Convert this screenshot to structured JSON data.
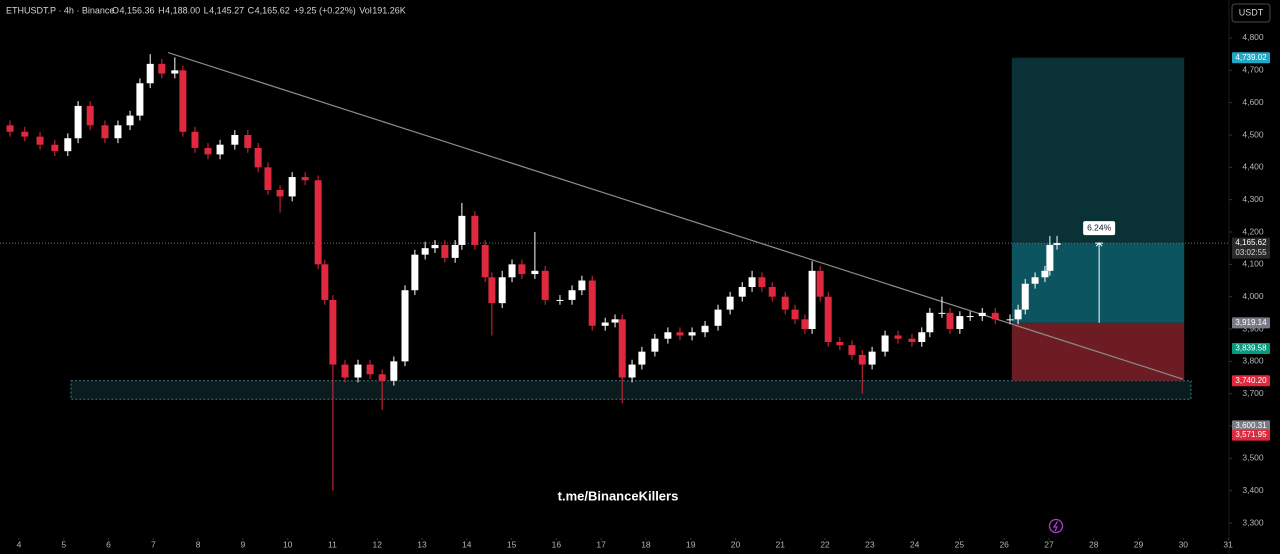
{
  "chart_data": {
    "type": "candlestick",
    "symbol": "ETHUSDT.P · 4h · Binance",
    "ohlc": [
      {
        "key": "O",
        "value": "4,156.36"
      },
      {
        "key": "H",
        "value": "4,188.00"
      },
      {
        "key": "L",
        "value": "4,145.27"
      },
      {
        "key": "C",
        "value": "4,165.62"
      },
      {
        "key": "",
        "value": "+9.25 (+0.22%)"
      },
      {
        "key": "Vol",
        "value": "191.26K"
      }
    ],
    "currency": "USDT",
    "watermark": "t.me/BinanceKillers",
    "up_color": "#ffffff",
    "down_color": "#e0293f",
    "xlim": [
      3.576,
      31.02
    ],
    "xticks": [
      4,
      5,
      6,
      7,
      8,
      9,
      10,
      11,
      12,
      13,
      14,
      15,
      16,
      17,
      18,
      19,
      20,
      21,
      22,
      23,
      24,
      25,
      26,
      27,
      28,
      29,
      30,
      31
    ],
    "ylim": [
      3263,
      4917.5
    ],
    "yticks": [
      {
        "value": 4800,
        "label": "4,800"
      },
      {
        "value": 4700,
        "label": "4,700"
      },
      {
        "value": 4600,
        "label": "4,600"
      },
      {
        "value": 4500,
        "label": "4,500"
      },
      {
        "value": 4400,
        "label": "4,400"
      },
      {
        "value": 4300,
        "label": "4,300"
      },
      {
        "value": 4200,
        "label": "4,200"
      },
      {
        "value": 4100,
        "label": "4,100"
      },
      {
        "value": 4000,
        "label": "4,000"
      },
      {
        "value": 3900,
        "label": "3,900"
      },
      {
        "value": 3800,
        "label": "3,800"
      },
      {
        "value": 3700,
        "label": "3,700"
      },
      {
        "value": 3600,
        "label": "3,600"
      },
      {
        "value": 3500,
        "label": "3,500"
      },
      {
        "value": 3400,
        "label": "3,400"
      },
      {
        "value": 3300,
        "label": "3,300"
      }
    ],
    "x": [
      3.8,
      4.13,
      4.47,
      4.8,
      5.09,
      5.32,
      5.59,
      5.92,
      6.21,
      6.48,
      6.7,
      6.93,
      7.19,
      7.48,
      7.66,
      7.93,
      8.22,
      8.49,
      8.82,
      9.11,
      9.34,
      9.56,
      9.83,
      10.1,
      10.39,
      10.68,
      10.83,
      11.01,
      11.28,
      11.57,
      11.84,
      12.11,
      12.37,
      12.62,
      12.84,
      13.07,
      13.29,
      13.51,
      13.74,
      13.89,
      14.18,
      14.41,
      14.56,
      14.79,
      15.01,
      15.23,
      15.52,
      15.75,
      16.08,
      16.35,
      16.57,
      16.8,
      17.09,
      17.31,
      17.47,
      17.69,
      17.91,
      18.2,
      18.49,
      18.76,
      19.03,
      19.32,
      19.61,
      19.88,
      20.15,
      20.37,
      20.59,
      20.82,
      21.11,
      21.33,
      21.55,
      21.71,
      21.89,
      22.07,
      22.33,
      22.6,
      22.83,
      23.05,
      23.34,
      23.63,
      23.94,
      24.16,
      24.34,
      24.61,
      24.79,
      25.01,
      25.24,
      25.51,
      25.8,
      26.13,
      26.31,
      26.47,
      26.69,
      26.91,
      27.02,
      27.18
    ],
    "open": [
      4530,
      4510,
      4495,
      4470,
      4450,
      4490,
      4590,
      4530,
      4490,
      4530,
      4560,
      4660,
      4720,
      4690,
      4700,
      4510,
      4460,
      4440,
      4470,
      4500,
      4460,
      4400,
      4330,
      4310,
      4370,
      4360,
      4100,
      3990,
      3790,
      3750,
      3790,
      3760,
      3740,
      3800,
      4020,
      4130,
      4150,
      4160,
      4120,
      4160,
      4250,
      4160,
      4060,
      3980,
      4060,
      4100,
      4070,
      4080,
      3990,
      3990,
      4020,
      4050,
      3910,
      3920,
      3930,
      3750,
      3790,
      3830,
      3870,
      3890,
      3880,
      3890,
      3910,
      3960,
      4000,
      4030,
      4060,
      4030,
      4000,
      3960,
      3930,
      3900,
      4080,
      4000,
      3860,
      3850,
      3820,
      3790,
      3830,
      3880,
      3870,
      3860,
      3890,
      3950,
      3950,
      3900,
      3940,
      3940,
      3950,
      3930,
      3930,
      3960,
      4040,
      4060,
      4080,
      4160
    ],
    "high": [
      4545,
      4525,
      4510,
      4485,
      4505,
      4605,
      4605,
      4545,
      4545,
      4575,
      4675,
      4750,
      4735,
      4740,
      4715,
      4525,
      4475,
      4485,
      4515,
      4515,
      4475,
      4415,
      4345,
      4385,
      4385,
      4375,
      4115,
      4005,
      3805,
      3805,
      3805,
      3775,
      3815,
      4035,
      4145,
      4170,
      4175,
      4175,
      4175,
      4290,
      4265,
      4175,
      4075,
      4080,
      4115,
      4115,
      4200,
      4095,
      4005,
      4035,
      4065,
      4065,
      3935,
      3945,
      3945,
      3805,
      3845,
      3885,
      3905,
      3905,
      3905,
      3925,
      3975,
      4015,
      4045,
      4080,
      4075,
      4045,
      4015,
      3975,
      3945,
      4110,
      4095,
      4015,
      3875,
      3865,
      3835,
      3845,
      3895,
      3895,
      3885,
      3905,
      3965,
      4000,
      3965,
      3955,
      3955,
      3965,
      3965,
      3945,
      3975,
      4055,
      4075,
      4095,
      4188,
      4188
    ],
    "low": [
      4495,
      4480,
      4455,
      4435,
      4435,
      4475,
      4515,
      4475,
      4475,
      4515,
      4545,
      4645,
      4675,
      4675,
      4495,
      4445,
      4425,
      4425,
      4455,
      4445,
      4385,
      4315,
      4260,
      4295,
      4345,
      4085,
      3975,
      3400,
      3735,
      3735,
      3745,
      3650,
      3725,
      3785,
      4005,
      4115,
      4135,
      4105,
      4105,
      4145,
      4145,
      4045,
      3880,
      3965,
      4045,
      4055,
      4055,
      3975,
      3975,
      3975,
      4005,
      3895,
      3895,
      3905,
      3670,
      3735,
      3775,
      3815,
      3855,
      3865,
      3865,
      3875,
      3895,
      3945,
      3985,
      4015,
      4015,
      3985,
      3945,
      3915,
      3885,
      3885,
      3985,
      3845,
      3835,
      3805,
      3700,
      3775,
      3815,
      3855,
      3845,
      3845,
      3875,
      3935,
      3885,
      3885,
      3925,
      3925,
      3915,
      3915,
      3915,
      3945,
      4025,
      4045,
      4065,
      4145.27
    ],
    "close": [
      4510,
      4495,
      4470,
      4450,
      4490,
      4590,
      4530,
      4490,
      4530,
      4560,
      4660,
      4720,
      4690,
      4700,
      4510,
      4460,
      4440,
      4470,
      4500,
      4460,
      4400,
      4330,
      4310,
      4370,
      4360,
      4100,
      3990,
      3790,
      3750,
      3790,
      3760,
      3740,
      3800,
      4020,
      4130,
      4150,
      4160,
      4120,
      4160,
      4250,
      4160,
      4060,
      3980,
      4060,
      4100,
      4070,
      4080,
      3990,
      3990,
      4020,
      4050,
      3910,
      3920,
      3930,
      3750,
      3790,
      3830,
      3870,
      3890,
      3880,
      3890,
      3910,
      3960,
      4000,
      4030,
      4060,
      4030,
      4000,
      3960,
      3930,
      3900,
      4080,
      4000,
      3860,
      3850,
      3820,
      3790,
      3830,
      3880,
      3870,
      3860,
      3890,
      3950,
      3950,
      3900,
      3940,
      3940,
      3950,
      3930,
      3930,
      3960,
      4040,
      4060,
      4080,
      4160,
      4165.62
    ],
    "trendline": {
      "x": [
        7.33,
        29.99
      ],
      "y": [
        4755,
        3745
      ],
      "color": "#8a8a8a"
    },
    "support_zone": {
      "x": [
        5.16,
        30.17
      ],
      "y": [
        3683,
        3740
      ],
      "color": "#4fb3c4"
    },
    "last": {
      "value": 4165.62,
      "label": "4,165.62",
      "countdown": "03:02:55"
    },
    "position": {
      "x": [
        26.17,
        30.02
      ],
      "target": {
        "value": 4739.02,
        "label": "4,739.02",
        "color": "#22a7c7"
      },
      "entry": {
        "value": 3919.14,
        "label": "3,919.14",
        "color": "#787b86"
      },
      "stop": {
        "value": 3740.2,
        "label": "3,740.20",
        "color": "#e0293f"
      },
      "change": {
        "x": 28.12,
        "value": 6.24,
        "label": "6.24%"
      }
    },
    "markers": [
      {
        "value": 3839.58,
        "label": "3,839.58",
        "color": "#089981"
      },
      {
        "value": 3600.31,
        "label": "3,600.31",
        "color": "#787b86"
      },
      {
        "value": 3571.95,
        "label": "3,571.95",
        "color": "#e0293f"
      }
    ]
  }
}
